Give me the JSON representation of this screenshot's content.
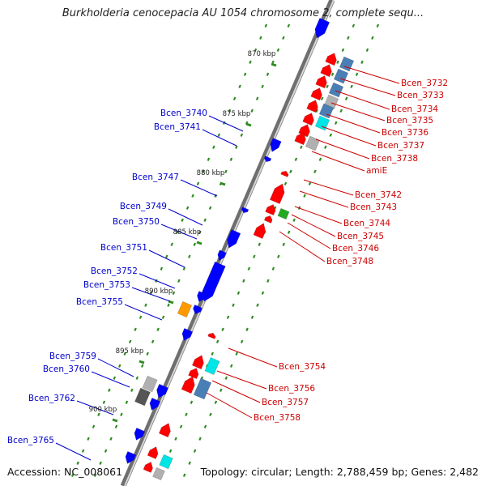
{
  "header": {
    "title": "Burkholderia cenocepacia AU 1054 chromosome 2, complete sequ..."
  },
  "footer": {
    "accession": "Accession: NC_008061",
    "topology": "Topology: circular; Length: 2,788,459 bp; Genes: 2,482"
  },
  "map": {
    "kbp_labels": [
      "870 kbp",
      "875 kbp",
      "880 kbp",
      "885 kbp",
      "890 kbp",
      "895 kbp",
      "900 kbp"
    ],
    "left_genes": [
      "Bcen_3740",
      "Bcen_3741",
      "Bcen_3747",
      "Bcen_3749",
      "Bcen_3750",
      "Bcen_3751",
      "Bcen_3752",
      "Bcen_3753",
      "Bcen_3755",
      "Bcen_3759",
      "Bcen_3760",
      "Bcen_3762",
      "Bcen_3765"
    ],
    "right_genes": [
      "Bcen_3732",
      "Bcen_3733",
      "Bcen_3734",
      "Bcen_3735",
      "Bcen_3736",
      "Bcen_3737",
      "Bcen_3738",
      "amiE",
      "Bcen_3742",
      "Bcen_3743",
      "Bcen_3744",
      "Bcen_3745",
      "Bcen_3746",
      "Bcen_3748",
      "Bcen_3754",
      "Bcen_3756",
      "Bcen_3757",
      "Bcen_3758"
    ],
    "colors": {
      "forward_strand": "#ff0000",
      "reverse_strand": "#0000ff",
      "label_left": "#0000cc",
      "label_right": "#cc0000",
      "backbone": "#777777",
      "dots": "#2e8b20",
      "cyan": "#00e5e5",
      "steel": "#4a7fb5",
      "orange": "#ff9900",
      "grey": "#b0b0b0"
    }
  }
}
